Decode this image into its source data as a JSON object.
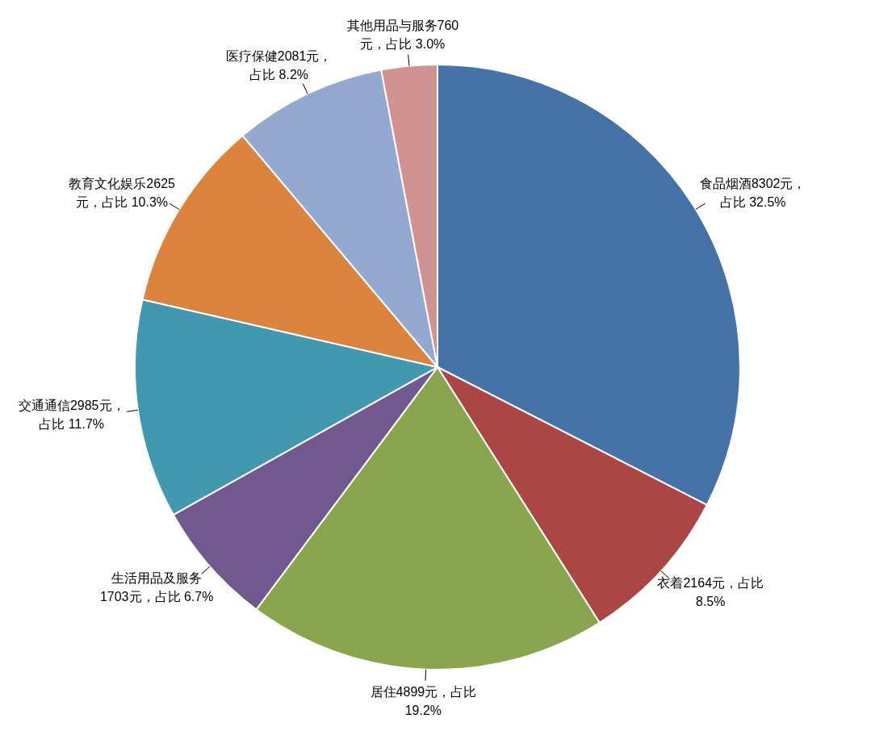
{
  "chart_data": {
    "type": "pie",
    "categories": [
      "食品烟酒",
      "衣着",
      "居住",
      "生活用品及服务",
      "交通通信",
      "教育文化娱乐",
      "医疗保健",
      "其他用品与服务"
    ],
    "values": [
      8302,
      2164,
      4899,
      1703,
      2985,
      2625,
      2081,
      760
    ],
    "colors": [
      "#4572a7",
      "#aa4643",
      "#89a54e",
      "#71588f",
      "#4198af",
      "#db843d",
      "#93a9cf",
      "#d19392"
    ],
    "value_labels": [
      "8302元，占比 32.5%",
      "2164元，占比 8.5%",
      "4899元，占比 19.2%",
      "1703元，占比 6.7%",
      "2985元，占比 11.7%",
      "2625元，占比 10.3%",
      "2081元，占比 8.2%",
      "760元，占比 3.0%"
    ]
  }
}
